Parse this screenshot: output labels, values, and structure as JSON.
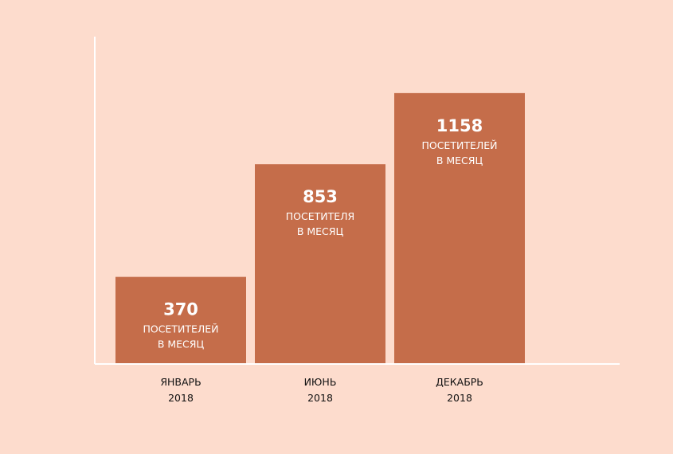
{
  "chart_data": {
    "type": "bar",
    "categories": [
      "ЯНВАРЬ",
      "ИЮНЬ",
      "ДЕКАБРЬ"
    ],
    "category_years": [
      "2018",
      "2018",
      "2018"
    ],
    "values": [
      370,
      853,
      1158
    ],
    "data_labels": [
      {
        "value": "370",
        "line1": "ПОСЕТИТЕЛЕЙ",
        "line2": "В МЕСЯЦ"
      },
      {
        "value": "853",
        "line1": "ПОСЕТИТЕЛЯ",
        "line2": "В МЕСЯЦ"
      },
      {
        "value": "1158",
        "line1": "ПОСЕТИТЕЛЕЙ",
        "line2": "В МЕСЯЦ"
      }
    ],
    "title": "",
    "xlabel": "",
    "ylabel": "",
    "ylim": [
      0,
      1400
    ],
    "grid": false,
    "legend": "none",
    "colors": {
      "background": "#fddccd",
      "bar": "#c56d4a",
      "axis": "#ffffff",
      "bar_text": "#ffffff",
      "tick_text": "#111111"
    }
  }
}
